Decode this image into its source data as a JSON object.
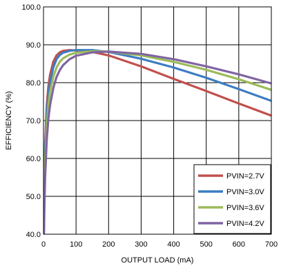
{
  "chart_data": {
    "type": "line",
    "title": "",
    "xlabel": "OUTPUT LOAD (mA)",
    "ylabel": "EFFICIENCY (%)",
    "xlim": [
      0,
      700
    ],
    "ylim": [
      40,
      100
    ],
    "x_ticks": [
      0,
      100,
      200,
      300,
      400,
      500,
      600,
      700
    ],
    "y_ticks": [
      40,
      50,
      60,
      70,
      80,
      90,
      100
    ],
    "x_tick_labels": [
      "0",
      "100",
      "200",
      "300",
      "400",
      "500",
      "600",
      "700"
    ],
    "y_tick_labels": [
      "40.0",
      "50.0",
      "60.0",
      "70.0",
      "80.0",
      "90.0",
      "100.0"
    ],
    "grid": true,
    "legend_position": "bottom-right",
    "series": [
      {
        "name": "PVIN=2.7V",
        "color": "#c0504d",
        "x": [
          1,
          3,
          5,
          10,
          15,
          20,
          30,
          40,
          50,
          60,
          80,
          100,
          150,
          200,
          300,
          400,
          500,
          600,
          700
        ],
        "y": [
          42,
          56,
          64,
          74,
          79,
          82,
          85.5,
          87.2,
          88,
          88.4,
          88.6,
          88.5,
          88.1,
          87.2,
          84.3,
          81,
          77.8,
          74.5,
          71.3
        ]
      },
      {
        "name": "PVIN=3.0V",
        "color": "#3c7cc3",
        "x": [
          1,
          3,
          5,
          10,
          15,
          20,
          30,
          40,
          50,
          60,
          80,
          100,
          150,
          200,
          300,
          400,
          500,
          600,
          700
        ],
        "y": [
          41,
          55,
          62,
          72,
          77,
          80,
          84,
          86.2,
          87.3,
          87.9,
          88.4,
          88.6,
          88.6,
          88.1,
          86.3,
          84,
          81.3,
          78.3,
          75.2
        ]
      },
      {
        "name": "PVIN=3.6V",
        "color": "#9bbb59",
        "x": [
          1,
          3,
          5,
          10,
          15,
          20,
          30,
          40,
          50,
          60,
          80,
          100,
          150,
          200,
          300,
          400,
          500,
          600,
          700
        ],
        "y": [
          40,
          52,
          59,
          69,
          74,
          77.5,
          81.5,
          84,
          85.5,
          86.4,
          87.4,
          87.9,
          88.3,
          88.2,
          87.2,
          85.5,
          83.4,
          80.9,
          78.1
        ]
      },
      {
        "name": "PVIN=4.2V",
        "color": "#8064a2",
        "x": [
          1,
          3,
          5,
          10,
          15,
          20,
          30,
          40,
          50,
          60,
          80,
          100,
          150,
          200,
          300,
          400,
          500,
          600,
          700
        ],
        "y": [
          38,
          48,
          55,
          65,
          70.5,
          74,
          78.5,
          81.5,
          83.3,
          84.6,
          86.2,
          87.1,
          88,
          88.2,
          87.6,
          86.2,
          84.3,
          82.2,
          79.8
        ]
      }
    ]
  }
}
